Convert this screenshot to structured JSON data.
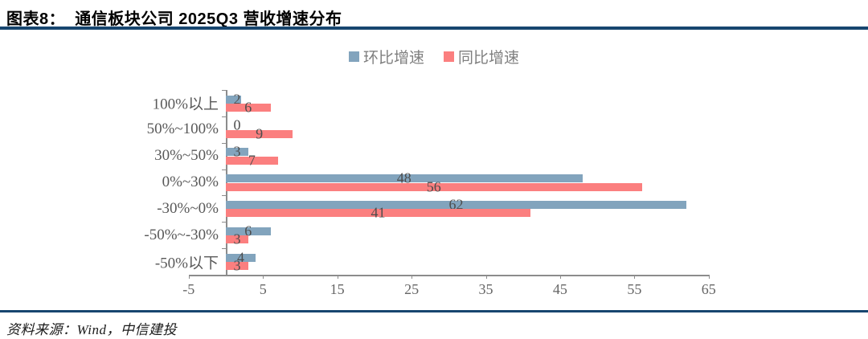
{
  "title": "图表8：  通信板块公司 2025Q3 营收增速分布",
  "source": "资料来源：Wind，中信建投",
  "legend": [
    {
      "label": "环比增速",
      "color": "#82a4bd"
    },
    {
      "label": "同比增速",
      "color": "#fb7f7f"
    }
  ],
  "colors": {
    "rule_navy": "#17466f",
    "axis_gray": "#8c8c8c",
    "bar_blue": "#82a4bd",
    "bar_red": "#fb7f7f",
    "label_gray": "#4d4d4d"
  },
  "chart_data": {
    "type": "bar",
    "orientation": "horizontal",
    "title": "通信板块公司 2025Q3 营收增速分布",
    "categories": [
      "100%以上",
      "50%~100%",
      "30%~50%",
      "0%~30%",
      "-30%~0%",
      "-50%~-30%",
      "-50%以下"
    ],
    "series": [
      {
        "name": "环比增速",
        "color": "#82a4bd",
        "values": [
          2,
          0,
          3,
          48,
          62,
          6,
          4
        ]
      },
      {
        "name": "同比增速",
        "color": "#fb7f7f",
        "values": [
          6,
          9,
          7,
          56,
          41,
          3,
          3
        ]
      }
    ],
    "xlim": [
      -5,
      65
    ],
    "xticks": [
      -5,
      5,
      15,
      25,
      35,
      45,
      55,
      65
    ],
    "grid": false,
    "legend_position": "top-center",
    "value_labels": "inside-center"
  }
}
